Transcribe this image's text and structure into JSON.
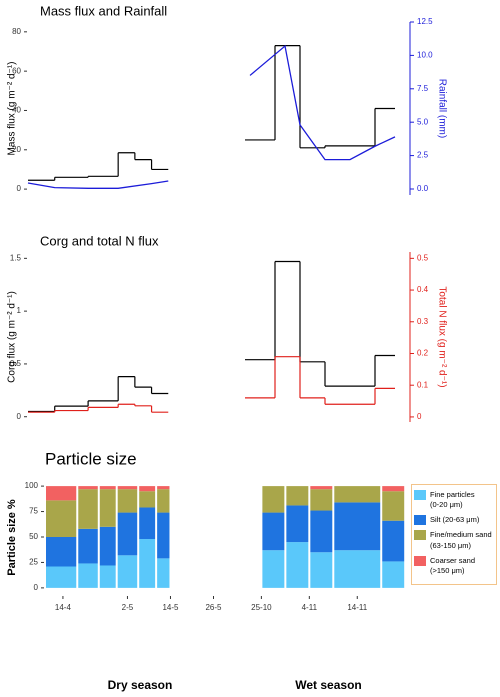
{
  "chart_data": [
    {
      "type": "step",
      "title": "Mass flux and Rainfall",
      "y_label": "Mass flux (g m⁻² d⁻¹)",
      "y2_label": "Rainfall (mm)",
      "y2_color": "#1c1cd9",
      "ylim": [
        -3,
        85
      ],
      "yticks": [
        0,
        20,
        40,
        60,
        80
      ],
      "y2lim": [
        -0.45,
        12.5
      ],
      "y2ticks": [
        {
          "value": 0,
          "label": "0.0"
        },
        2.5,
        {
          "value": 5,
          "label": "5.0"
        },
        7.5,
        {
          "value": 10,
          "label": "10.0"
        },
        12.5
      ],
      "facets": [
        {
          "xlim": [
            "9-4",
            "1-6"
          ],
          "series": [
            {
              "type": "step",
              "color": "#000000",
              "bins": [
                "9-4",
                "17-4",
                "27-4",
                "6-5",
                "11-5",
                "16-5",
                "21-5"
              ],
              "values": [
                4.5,
                6,
                6.5,
                18.5,
                15,
                10
              ]
            },
            {
              "type": "line",
              "axis": "y2",
              "color": "#1c1cd9",
              "x": [
                "9-4",
                "17-4",
                "27-4",
                "6-5",
                "16-5",
                "21-5"
              ],
              "values": [
                0.45,
                0.1,
                0.05,
                0.05,
                0.4,
                0.6
              ]
            }
          ]
        },
        {
          "xlim": [
            "22-10",
            "25-11"
          ],
          "series": [
            {
              "type": "step",
              "color": "#000000",
              "bins": [
                "24-10",
                "30-10",
                "4-11",
                "9-11",
                "19-11",
                "23-11"
              ],
              "values": [
                25,
                73,
                21,
                22,
                41
              ]
            },
            {
              "type": "line",
              "axis": "y2",
              "color": "#1c1cd9",
              "x": [
                "25-10",
                "1-11",
                "4-11",
                "9-11",
                "14-11",
                "19-11",
                "23-11"
              ],
              "values": [
                8.5,
                10.7,
                4.8,
                2.2,
                2.2,
                3.2,
                3.9
              ]
            }
          ]
        }
      ]
    },
    {
      "type": "step",
      "title": "Corg and total N flux",
      "y_label": "Corg flux (g m⁻² d⁻¹)",
      "y2_label": "Total N flux (g m⁻² d⁻¹)",
      "y2_color": "#e0201b",
      "ylim": [
        -0.05,
        1.56
      ],
      "yticks": [
        0,
        0.5,
        1,
        1.5
      ],
      "y2lim": [
        -0.016,
        0.52
      ],
      "y2ticks": [
        0,
        0.1,
        0.2,
        0.3,
        0.4,
        0.5
      ],
      "facets": [
        {
          "xlim": [
            "9-4",
            "1-6"
          ],
          "series": [
            {
              "type": "step",
              "color": "#000000",
              "bins": [
                "9-4",
                "17-4",
                "27-4",
                "6-5",
                "11-5",
                "16-5",
                "21-5"
              ],
              "values": [
                0.05,
                0.1,
                0.15,
                0.38,
                0.28,
                0.22
              ]
            },
            {
              "type": "step",
              "axis": "y2",
              "color": "#e0201b",
              "bins": [
                "9-4",
                "17-4",
                "27-4",
                "6-5",
                "11-5",
                "16-5",
                "21-5"
              ],
              "values": [
                0.015,
                0.02,
                0.03,
                0.04,
                0.035,
                0.015
              ]
            }
          ]
        },
        {
          "xlim": [
            "22-10",
            "25-11"
          ],
          "series": [
            {
              "type": "step",
              "color": "#000000",
              "bins": [
                "24-10",
                "30-10",
                "4-11",
                "9-11",
                "19-11",
                "23-11"
              ],
              "values": [
                0.54,
                1.47,
                0.52,
                0.29,
                0.58
              ]
            },
            {
              "type": "step",
              "axis": "y2",
              "color": "#e0201b",
              "bins": [
                "24-10",
                "30-10",
                "4-11",
                "9-11",
                "19-11",
                "23-11"
              ],
              "values": [
                0.06,
                0.19,
                0.06,
                0.04,
                0.09
              ]
            }
          ]
        }
      ]
    },
    {
      "type": "stacked-bar",
      "title": "Particle size",
      "y_label": "Particle size %",
      "ylim": [
        -7,
        106
      ],
      "yticks": [
        0,
        25,
        50,
        75,
        100
      ],
      "legend": "right",
      "series": [
        {
          "name": "Fine particles\n(0-20 μm)",
          "color": "#5ac8fa"
        },
        {
          "name": "Silt (20-63 μm)",
          "color": "#1f74e0"
        },
        {
          "name": "Fine/medium sand\n(63-150 μm)",
          "color": "#a9a64a"
        },
        {
          "name": "Coarser sand\n(>150 μm)",
          "color": "#f26161"
        }
      ],
      "facets": [
        {
          "name": "Dry season",
          "xlim": [
            "9-4",
            "1-6"
          ],
          "xticks": [
            "14-4",
            "2-5",
            "14-5",
            "26-5"
          ],
          "bins": [
            "9-4",
            "18-4",
            "24-4",
            "29-4",
            "5-5",
            "10-5",
            "14-5"
          ],
          "values": [
            [
              21,
              24,
              22,
              32,
              48,
              29
            ],
            [
              29,
              34,
              38,
              42,
              31,
              45
            ],
            [
              36,
              39,
              37,
              23,
              16,
              23
            ],
            [
              14,
              3,
              3,
              3,
              5,
              3
            ]
          ]
        },
        {
          "name": "Wet season",
          "xlim": [
            "22-10",
            "25-11"
          ],
          "xticks": [
            "25-10",
            "4-11",
            "14-11"
          ],
          "bins": [
            "25-10",
            "30-10",
            "4-11",
            "9-11",
            "19-11",
            "24-11"
          ],
          "values": [
            [
              37,
              45,
              35,
              37,
              26
            ],
            [
              37,
              36,
              41,
              47,
              40
            ],
            [
              26,
              19,
              21,
              16,
              29
            ],
            [
              0,
              0,
              3,
              0,
              5
            ]
          ]
        }
      ]
    }
  ]
}
